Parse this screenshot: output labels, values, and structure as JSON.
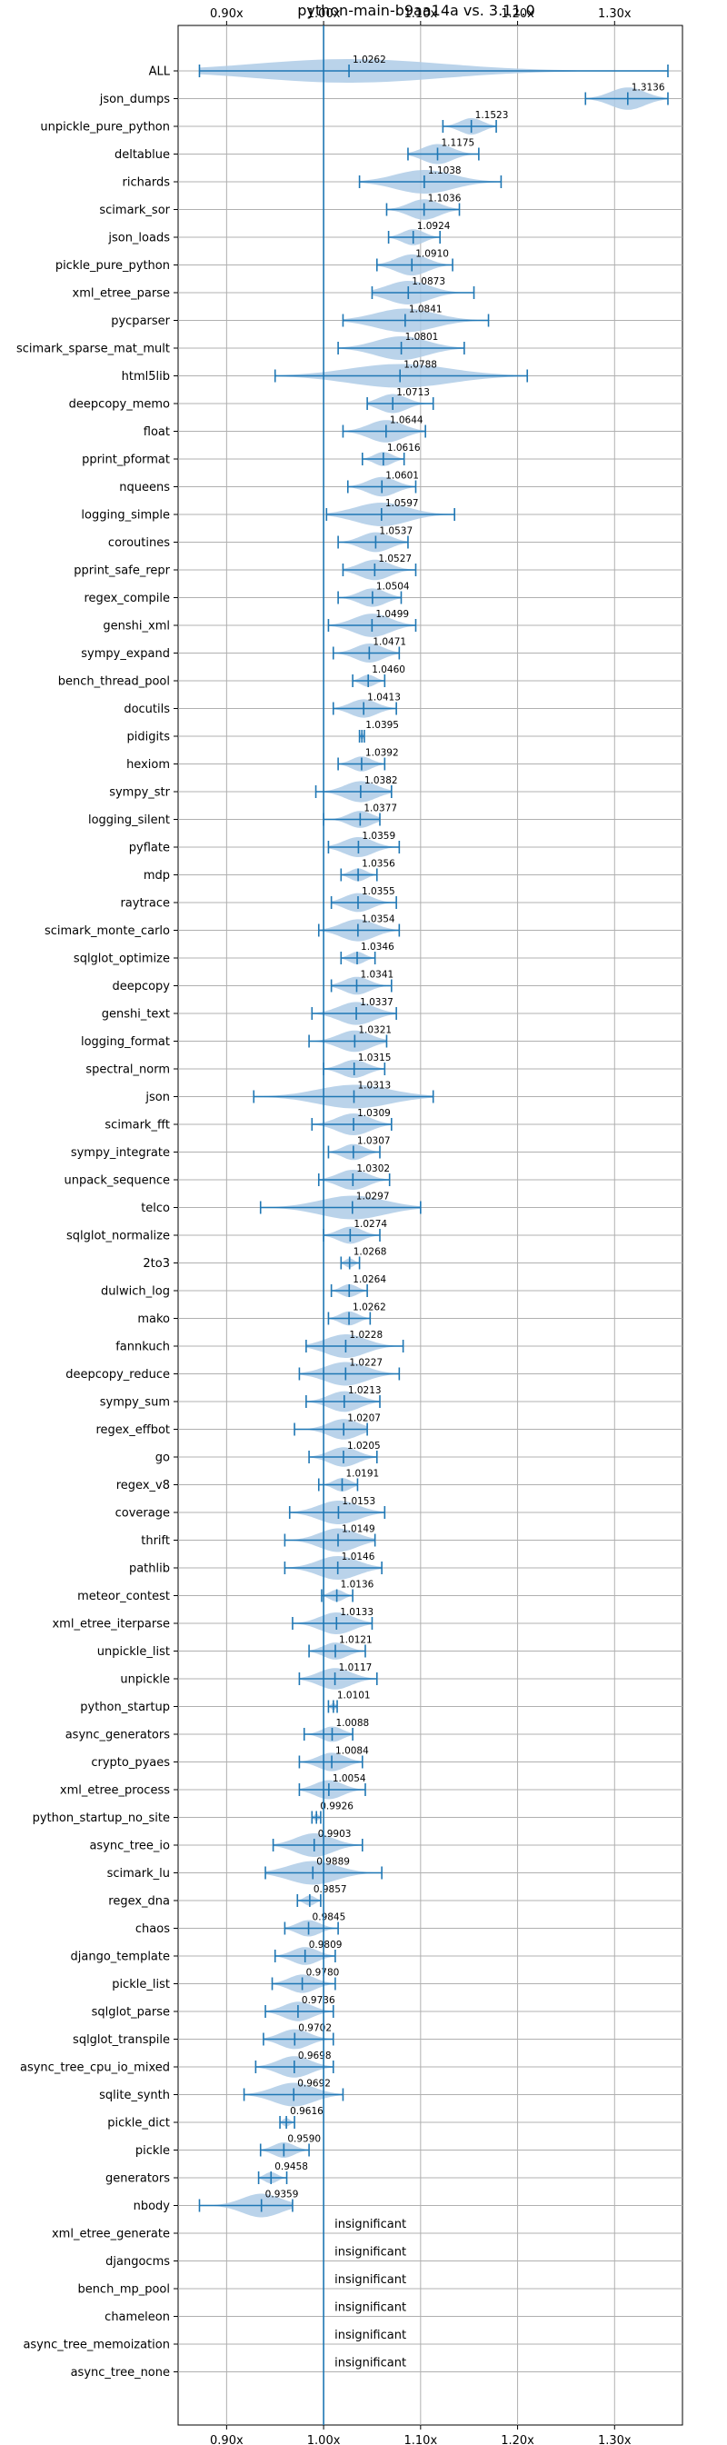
{
  "chart_data": {
    "type": "violin",
    "title": "python-main-b9aa14a vs. 3.11.0",
    "xlabel": "",
    "ylabel": "",
    "xlim": [
      0.85,
      1.37
    ],
    "xticks": [
      0.9,
      1.0,
      1.1,
      1.2,
      1.3
    ],
    "xtick_labels": [
      "0.90x",
      "1.00x",
      "1.10x",
      "1.20x",
      "1.30x"
    ],
    "reference_line": 1.0,
    "grid": true,
    "colors": {
      "violin": "#aecbe6",
      "line": "#1f77b4"
    },
    "insignificant_text": "insignificant",
    "rows": [
      {
        "name": "ALL",
        "mean": 1.0262,
        "lo": 0.872,
        "hi": 1.355,
        "w": 0.05
      },
      {
        "name": "json_dumps",
        "mean": 1.3136,
        "lo": 1.27,
        "hi": 1.355,
        "w": 0.045
      },
      {
        "name": "unpickle_pure_python",
        "mean": 1.1523,
        "lo": 1.123,
        "hi": 1.178,
        "w": 0.04
      },
      {
        "name": "deltablue",
        "mean": 1.1175,
        "lo": 1.087,
        "hi": 1.16,
        "w": 0.045
      },
      {
        "name": "richards",
        "mean": 1.1038,
        "lo": 1.037,
        "hi": 1.183,
        "w": 0.055
      },
      {
        "name": "scimark_sor",
        "mean": 1.1036,
        "lo": 1.065,
        "hi": 1.14,
        "w": 0.045
      },
      {
        "name": "json_loads",
        "mean": 1.0924,
        "lo": 1.067,
        "hi": 1.12,
        "w": 0.04
      },
      {
        "name": "pickle_pure_python",
        "mean": 1.091,
        "lo": 1.055,
        "hi": 1.133,
        "w": 0.045
      },
      {
        "name": "xml_etree_parse",
        "mean": 1.0873,
        "lo": 1.05,
        "hi": 1.155,
        "w": 0.045
      },
      {
        "name": "pycparser",
        "mean": 1.0841,
        "lo": 1.02,
        "hi": 1.17,
        "w": 0.05
      },
      {
        "name": "scimark_sparse_mat_mult",
        "mean": 1.0801,
        "lo": 1.015,
        "hi": 1.145,
        "w": 0.05
      },
      {
        "name": "html5lib",
        "mean": 1.0788,
        "lo": 0.95,
        "hi": 1.21,
        "w": 0.05
      },
      {
        "name": "deepcopy_memo",
        "mean": 1.0713,
        "lo": 1.045,
        "hi": 1.113,
        "w": 0.045
      },
      {
        "name": "float",
        "mean": 1.0644,
        "lo": 1.02,
        "hi": 1.105,
        "w": 0.045
      },
      {
        "name": "pprint_pformat",
        "mean": 1.0616,
        "lo": 1.04,
        "hi": 1.083,
        "w": 0.04
      },
      {
        "name": "nqueens",
        "mean": 1.0601,
        "lo": 1.025,
        "hi": 1.095,
        "w": 0.045
      },
      {
        "name": "logging_simple",
        "mean": 1.0597,
        "lo": 1.003,
        "hi": 1.135,
        "w": 0.055
      },
      {
        "name": "coroutines",
        "mean": 1.0537,
        "lo": 1.015,
        "hi": 1.087,
        "w": 0.045
      },
      {
        "name": "pprint_safe_repr",
        "mean": 1.0527,
        "lo": 1.02,
        "hi": 1.095,
        "w": 0.045
      },
      {
        "name": "regex_compile",
        "mean": 1.0504,
        "lo": 1.015,
        "hi": 1.08,
        "w": 0.04
      },
      {
        "name": "genshi_xml",
        "mean": 1.0499,
        "lo": 1.005,
        "hi": 1.095,
        "w": 0.05
      },
      {
        "name": "sympy_expand",
        "mean": 1.0471,
        "lo": 1.01,
        "hi": 1.078,
        "w": 0.045
      },
      {
        "name": "bench_thread_pool",
        "mean": 1.046,
        "lo": 1.03,
        "hi": 1.063,
        "w": 0.035
      },
      {
        "name": "docutils",
        "mean": 1.0413,
        "lo": 1.01,
        "hi": 1.075,
        "w": 0.045
      },
      {
        "name": "pidigits",
        "mean": 1.0395,
        "lo": 1.037,
        "hi": 1.042,
        "w": 0.012
      },
      {
        "name": "hexiom",
        "mean": 1.0392,
        "lo": 1.015,
        "hi": 1.063,
        "w": 0.04
      },
      {
        "name": "sympy_str",
        "mean": 1.0382,
        "lo": 0.992,
        "hi": 1.07,
        "w": 0.05
      },
      {
        "name": "logging_silent",
        "mean": 1.0377,
        "lo": 1.0,
        "hi": 1.058,
        "w": 0.045
      },
      {
        "name": "pyflate",
        "mean": 1.0359,
        "lo": 1.005,
        "hi": 1.078,
        "w": 0.045
      },
      {
        "name": "mdp",
        "mean": 1.0356,
        "lo": 1.018,
        "hi": 1.055,
        "w": 0.035
      },
      {
        "name": "raytrace",
        "mean": 1.0355,
        "lo": 1.008,
        "hi": 1.075,
        "w": 0.045
      },
      {
        "name": "scimark_monte_carlo",
        "mean": 1.0354,
        "lo": 0.995,
        "hi": 1.078,
        "w": 0.045
      },
      {
        "name": "sqlglot_optimize",
        "mean": 1.0346,
        "lo": 1.018,
        "hi": 1.053,
        "w": 0.035
      },
      {
        "name": "deepcopy",
        "mean": 1.0341,
        "lo": 1.008,
        "hi": 1.07,
        "w": 0.045
      },
      {
        "name": "genshi_text",
        "mean": 1.0337,
        "lo": 0.988,
        "hi": 1.075,
        "w": 0.05
      },
      {
        "name": "logging_format",
        "mean": 1.0321,
        "lo": 0.985,
        "hi": 1.065,
        "w": 0.05
      },
      {
        "name": "spectral_norm",
        "mean": 1.0315,
        "lo": 1.0,
        "hi": 1.063,
        "w": 0.045
      },
      {
        "name": "json",
        "mean": 1.0313,
        "lo": 0.928,
        "hi": 1.113,
        "w": 0.05
      },
      {
        "name": "scimark_fft",
        "mean": 1.0309,
        "lo": 0.988,
        "hi": 1.07,
        "w": 0.05
      },
      {
        "name": "sympy_integrate",
        "mean": 1.0307,
        "lo": 1.005,
        "hi": 1.058,
        "w": 0.04
      },
      {
        "name": "unpack_sequence",
        "mean": 1.0302,
        "lo": 0.995,
        "hi": 1.068,
        "w": 0.045
      },
      {
        "name": "telco",
        "mean": 1.0297,
        "lo": 0.935,
        "hi": 1.1,
        "w": 0.055
      },
      {
        "name": "sqlglot_normalize",
        "mean": 1.0274,
        "lo": 1.0,
        "hi": 1.058,
        "w": 0.045
      },
      {
        "name": "2to3",
        "mean": 1.0268,
        "lo": 1.018,
        "hi": 1.037,
        "w": 0.025
      },
      {
        "name": "dulwich_log",
        "mean": 1.0264,
        "lo": 1.008,
        "hi": 1.045,
        "w": 0.035
      },
      {
        "name": "mako",
        "mean": 1.0262,
        "lo": 1.005,
        "hi": 1.048,
        "w": 0.04
      },
      {
        "name": "fannkuch",
        "mean": 1.0228,
        "lo": 0.982,
        "hi": 1.082,
        "w": 0.05
      },
      {
        "name": "deepcopy_reduce",
        "mean": 1.0227,
        "lo": 0.975,
        "hi": 1.078,
        "w": 0.05
      },
      {
        "name": "sympy_sum",
        "mean": 1.0213,
        "lo": 0.982,
        "hi": 1.058,
        "w": 0.045
      },
      {
        "name": "regex_effbot",
        "mean": 1.0207,
        "lo": 0.97,
        "hi": 1.045,
        "w": 0.045
      },
      {
        "name": "go",
        "mean": 1.0205,
        "lo": 0.985,
        "hi": 1.055,
        "w": 0.045
      },
      {
        "name": "regex_v8",
        "mean": 1.0191,
        "lo": 0.995,
        "hi": 1.035,
        "w": 0.035
      },
      {
        "name": "coverage",
        "mean": 1.0153,
        "lo": 0.965,
        "hi": 1.063,
        "w": 0.05
      },
      {
        "name": "thrift",
        "mean": 1.0149,
        "lo": 0.96,
        "hi": 1.053,
        "w": 0.05
      },
      {
        "name": "pathlib",
        "mean": 1.0146,
        "lo": 0.96,
        "hi": 1.06,
        "w": 0.05
      },
      {
        "name": "meteor_contest",
        "mean": 1.0136,
        "lo": 0.998,
        "hi": 1.03,
        "w": 0.035
      },
      {
        "name": "xml_etree_iterparse",
        "mean": 1.0133,
        "lo": 0.968,
        "hi": 1.05,
        "w": 0.05
      },
      {
        "name": "unpickle_list",
        "mean": 1.0121,
        "lo": 0.985,
        "hi": 1.043,
        "w": 0.045
      },
      {
        "name": "unpickle",
        "mean": 1.0117,
        "lo": 0.975,
        "hi": 1.055,
        "w": 0.045
      },
      {
        "name": "python_startup",
        "mean": 1.0101,
        "lo": 1.005,
        "hi": 1.014,
        "w": 0.012
      },
      {
        "name": "async_generators",
        "mean": 1.0088,
        "lo": 0.98,
        "hi": 1.03,
        "w": 0.045
      },
      {
        "name": "crypto_pyaes",
        "mean": 1.0084,
        "lo": 0.975,
        "hi": 1.04,
        "w": 0.045
      },
      {
        "name": "xml_etree_process",
        "mean": 1.0054,
        "lo": 0.975,
        "hi": 1.043,
        "w": 0.045
      },
      {
        "name": "python_startup_no_site",
        "mean": 0.9926,
        "lo": 0.988,
        "hi": 0.997,
        "w": 0.012
      },
      {
        "name": "async_tree_io",
        "mean": 0.9903,
        "lo": 0.948,
        "hi": 1.04,
        "w": 0.05
      },
      {
        "name": "scimark_lu",
        "mean": 0.9889,
        "lo": 0.94,
        "hi": 1.06,
        "w": 0.05
      },
      {
        "name": "regex_dna",
        "mean": 0.9857,
        "lo": 0.973,
        "hi": 0.997,
        "w": 0.03
      },
      {
        "name": "chaos",
        "mean": 0.9845,
        "lo": 0.96,
        "hi": 1.015,
        "w": 0.045
      },
      {
        "name": "django_template",
        "mean": 0.9809,
        "lo": 0.95,
        "hi": 1.012,
        "w": 0.045
      },
      {
        "name": "pickle_list",
        "mean": 0.978,
        "lo": 0.947,
        "hi": 1.012,
        "w": 0.045
      },
      {
        "name": "sqlglot_parse",
        "mean": 0.9736,
        "lo": 0.94,
        "hi": 1.01,
        "w": 0.045
      },
      {
        "name": "sqlglot_transpile",
        "mean": 0.9702,
        "lo": 0.938,
        "hi": 1.01,
        "w": 0.045
      },
      {
        "name": "async_tree_cpu_io_mixed",
        "mean": 0.9698,
        "lo": 0.93,
        "hi": 1.01,
        "w": 0.05
      },
      {
        "name": "sqlite_synth",
        "mean": 0.9692,
        "lo": 0.918,
        "hi": 1.02,
        "w": 0.05
      },
      {
        "name": "pickle_dict",
        "mean": 0.9616,
        "lo": 0.955,
        "hi": 0.97,
        "w": 0.02
      },
      {
        "name": "pickle",
        "mean": 0.959,
        "lo": 0.935,
        "hi": 0.985,
        "w": 0.04
      },
      {
        "name": "generators",
        "mean": 0.9458,
        "lo": 0.933,
        "hi": 0.962,
        "w": 0.03
      },
      {
        "name": "nbody",
        "mean": 0.9359,
        "lo": 0.872,
        "hi": 0.968,
        "w": 0.055
      },
      {
        "name": "xml_etree_generate",
        "insignificant": true
      },
      {
        "name": "djangocms",
        "insignificant": true
      },
      {
        "name": "bench_mp_pool",
        "insignificant": true
      },
      {
        "name": "chameleon",
        "insignificant": true
      },
      {
        "name": "async_tree_memoization",
        "insignificant": true
      },
      {
        "name": "async_tree_none",
        "insignificant": true
      }
    ]
  }
}
